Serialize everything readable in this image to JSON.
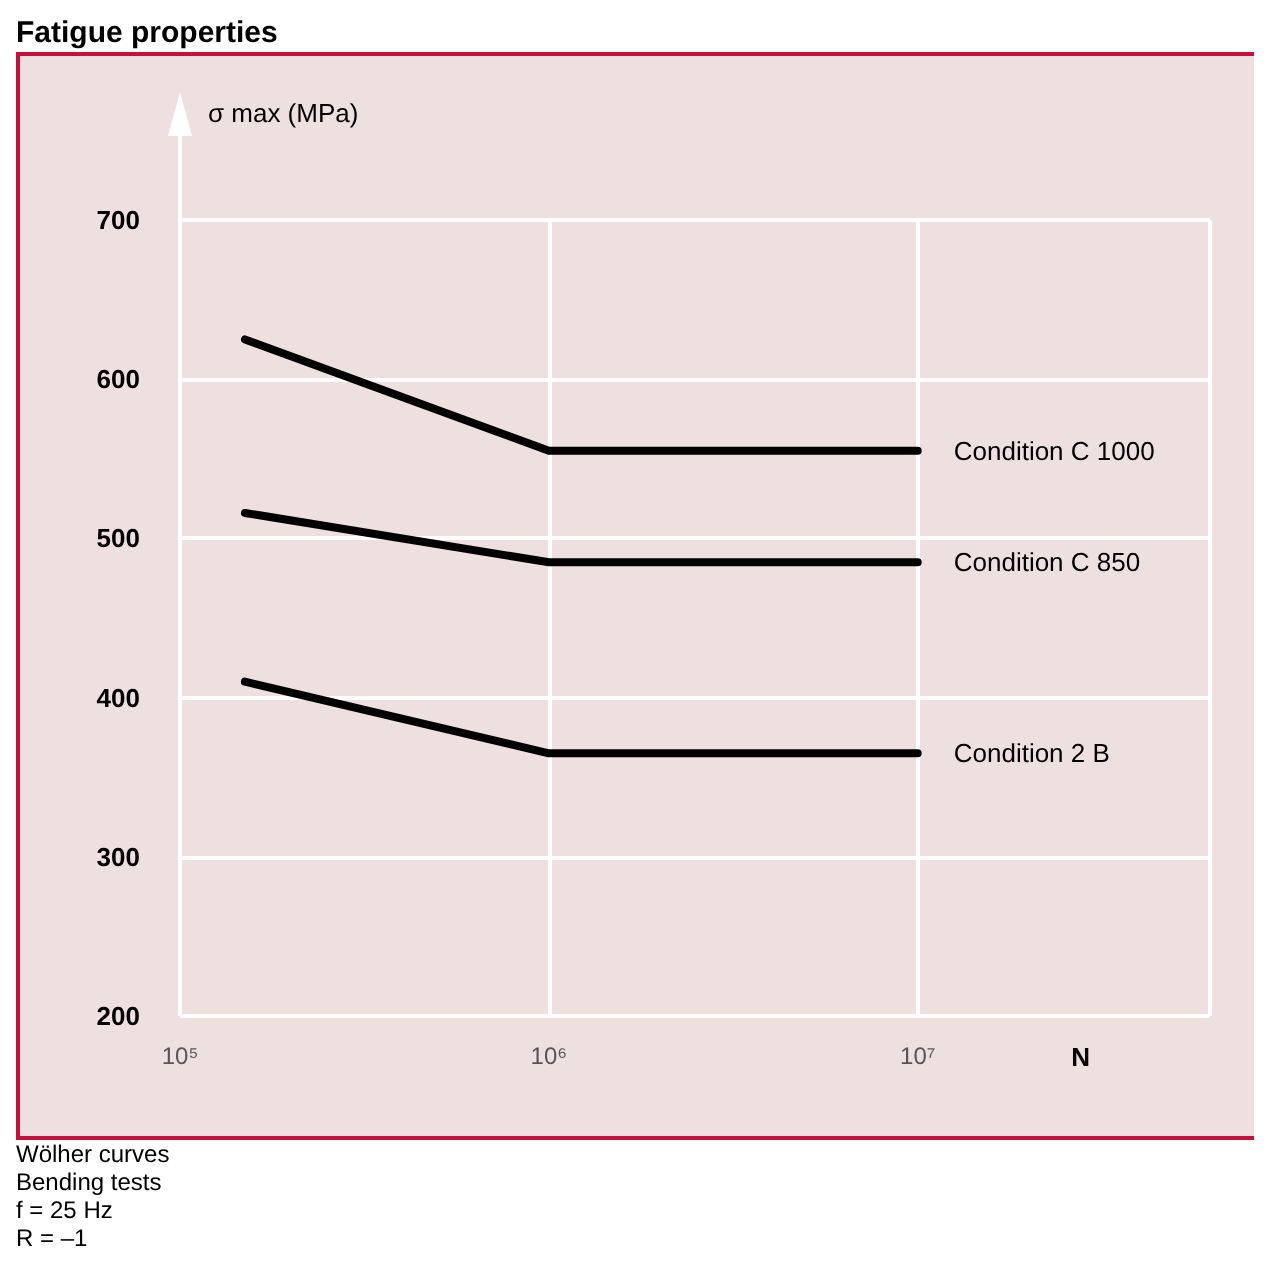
{
  "chart_data": {
    "type": "line",
    "title": "Fatigue properties",
    "ylabel": "σ max (MPa)",
    "xlabel": "N",
    "log": "x",
    "xlim": [
      100000,
      62000000
    ],
    "xticks": [
      {
        "value": 100000,
        "label": "10⁵"
      },
      {
        "value": 1000000,
        "label": "10⁶"
      },
      {
        "value": 10000000,
        "label": "10⁷"
      }
    ],
    "ylim": [
      200,
      700
    ],
    "yticks": [
      200,
      300,
      400,
      500,
      600,
      700
    ],
    "x": [
      150000,
      1000000,
      10000000
    ],
    "series": [
      {
        "name": "Condition C 1000",
        "color": "#000000",
        "values": [
          625,
          555,
          555
        ]
      },
      {
        "name": "Condition C 850",
        "color": "#000000",
        "values": [
          516,
          485,
          485
        ]
      },
      {
        "name": "Condition 2 B",
        "color": "#000000",
        "values": [
          410,
          365,
          365
        ]
      }
    ],
    "grid": true,
    "legend": false,
    "marker": "none",
    "line_style": "solid",
    "annotations": [
      "Wölher curves",
      "Bending tests",
      "f = 25 Hz",
      "R = –1"
    ]
  }
}
